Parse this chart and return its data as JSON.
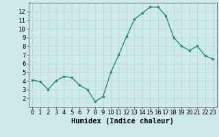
{
  "x": [
    0,
    1,
    2,
    3,
    4,
    5,
    6,
    7,
    8,
    9,
    10,
    11,
    12,
    13,
    14,
    15,
    16,
    17,
    18,
    19,
    20,
    21,
    22,
    23
  ],
  "y": [
    4.1,
    3.9,
    3.0,
    4.0,
    4.5,
    4.4,
    3.5,
    3.0,
    1.6,
    2.2,
    5.0,
    7.0,
    9.1,
    11.1,
    11.8,
    12.5,
    12.5,
    11.5,
    9.0,
    8.0,
    7.5,
    8.0,
    6.9,
    6.5
  ],
  "xlabel": "Humidex (Indice chaleur)",
  "ylim": [
    1.0,
    13.0
  ],
  "yticks": [
    2,
    3,
    4,
    5,
    6,
    7,
    8,
    9,
    10,
    11,
    12
  ],
  "xticks": [
    0,
    1,
    2,
    3,
    4,
    5,
    6,
    7,
    8,
    9,
    10,
    11,
    12,
    13,
    14,
    15,
    16,
    17,
    18,
    19,
    20,
    21,
    22,
    23
  ],
  "line_color": "#2e8b6e",
  "marker_color": "#2e8b6e",
  "bg_color": "#ceeaea",
  "grid_color": "#b8d8d8",
  "xlabel_fontsize": 7.5,
  "tick_fontsize": 6.5
}
